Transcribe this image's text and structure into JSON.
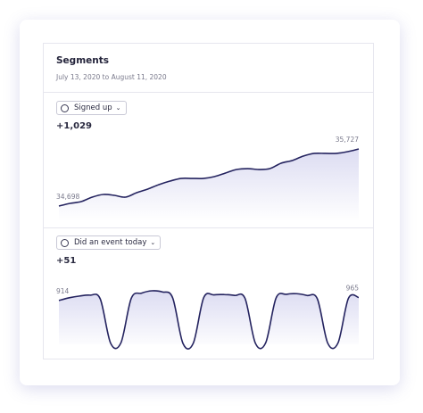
{
  "header": {
    "title": "Segments",
    "date_range": "July 13, 2020 to August 11, 2020"
  },
  "charts": [
    {
      "type": "line",
      "dropdown": "Signed up",
      "total": "+1,029",
      "color": "#24235f",
      "values": [
        34698,
        34746,
        34778,
        34859,
        34907,
        34891,
        34859,
        34939,
        35004,
        35084,
        35148,
        35196,
        35196,
        35196,
        35229,
        35293,
        35357,
        35373,
        35357,
        35373,
        35470,
        35518,
        35598,
        35647,
        35647,
        35647,
        35679,
        35727
      ],
      "value_labels": [
        "34,698",
        null,
        null,
        null,
        null,
        null,
        null,
        null,
        null,
        null,
        null,
        null,
        null,
        null,
        null,
        null,
        null,
        null,
        null,
        null,
        null,
        null,
        null,
        null,
        null,
        null,
        null,
        "35,727"
      ]
    },
    {
      "type": "line",
      "dropdown": "Did an event today",
      "total": "+51",
      "color": "#24235f",
      "values": [
        914,
        960,
        990,
        1005,
        940,
        180,
        185,
        950,
        1040,
        1080,
        1060,
        960,
        175,
        180,
        960,
        1010,
        1015,
        1000,
        950,
        180,
        185,
        955,
        1020,
        1030,
        1000,
        940,
        180,
        185,
        950,
        965
      ],
      "value_labels": [
        "914",
        null,
        null,
        null,
        null,
        null,
        null,
        null,
        null,
        null,
        null,
        null,
        null,
        null,
        null,
        null,
        null,
        null,
        null,
        null,
        null,
        null,
        null,
        null,
        null,
        null,
        null,
        null,
        null,
        "965"
      ]
    }
  ]
}
